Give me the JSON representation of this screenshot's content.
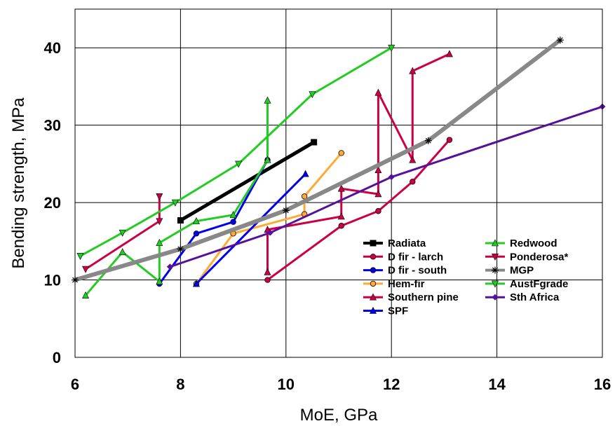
{
  "chart_data": {
    "type": "line",
    "xlabel": "MoE, GPa",
    "ylabel": "Bending strength, MPa",
    "xlim": [
      6,
      16
    ],
    "ylim": [
      0,
      45
    ],
    "x_ticks": [
      "6",
      "8",
      "10",
      "12",
      "14",
      "16"
    ],
    "y_ticks": [
      "0",
      "10",
      "20",
      "30",
      "40"
    ],
    "grid": true,
    "legend_position": "lower-right inside plot, two columns",
    "series": [
      {
        "name": "Radiata",
        "color": "#000000",
        "marker": "square",
        "width": 5,
        "x": [
          8.0,
          10.53
        ],
        "y": [
          17.7,
          27.8
        ]
      },
      {
        "name": "D fir - larch",
        "color": "#cc0044",
        "marker": "circle",
        "width": 3,
        "x": [
          9.65,
          11.05,
          11.75,
          12.4,
          13.1
        ],
        "y": [
          10.0,
          17.0,
          18.9,
          22.7,
          28.1
        ]
      },
      {
        "name": "D fir - south",
        "color": "#0000ee",
        "marker": "circle",
        "width": 3,
        "x": [
          7.6,
          8.3,
          9.0,
          9.65
        ],
        "y": [
          9.5,
          16.0,
          17.5,
          25.5
        ]
      },
      {
        "name": "Hem-fir",
        "color": "#ffaa33",
        "marker": "circle",
        "width": 3,
        "x": [
          8.3,
          9.0,
          10.35,
          10.35,
          11.05
        ],
        "y": [
          9.5,
          16.0,
          18.5,
          20.8,
          26.4
        ]
      },
      {
        "name": "Southern pine",
        "color": "#cc0044",
        "marker": "triangle-up",
        "width": 3,
        "x": [
          9.65,
          9.65,
          11.05,
          11.05,
          11.75,
          11.75,
          11.75,
          12.4,
          12.4,
          13.1
        ],
        "y": [
          11.0,
          16.5,
          18.2,
          21.8,
          21.1,
          24.2,
          34.2,
          25.5,
          37.0,
          39.2
        ]
      },
      {
        "name": "SPF",
        "color": "#0000ee",
        "marker": "triangle-up",
        "width": 3,
        "x": [
          8.3,
          10.37
        ],
        "y": [
          9.5,
          23.7
        ]
      },
      {
        "name": "Redwood",
        "color": "#22cc22",
        "marker": "triangle-up",
        "width": 3,
        "x": [
          6.2,
          6.9,
          7.6,
          7.6,
          8.3,
          9.0,
          9.65,
          9.65
        ],
        "y": [
          8.0,
          13.6,
          9.8,
          14.8,
          17.6,
          18.4,
          25.5,
          33.2
        ]
      },
      {
        "name": "Ponderosa*",
        "color": "#cc0044",
        "marker": "triangle-down",
        "width": 3,
        "x": [
          6.2,
          7.6,
          7.6
        ],
        "y": [
          11.4,
          17.6,
          20.8
        ]
      },
      {
        "name": "MGP",
        "color": "#888888",
        "marker": "star",
        "width": 6,
        "x": [
          6.0,
          8.0,
          10.0,
          12.7,
          15.2
        ],
        "y": [
          10.0,
          14.0,
          19.0,
          28.0,
          41.0
        ]
      },
      {
        "name": "AustFgrade",
        "color": "#22cc22",
        "marker": "triangle-down",
        "width": 3,
        "x": [
          6.1,
          6.9,
          7.9,
          9.1,
          10.5,
          12.0
        ],
        "y": [
          13.1,
          16.1,
          20.0,
          25.0,
          34.0,
          40.0
        ]
      },
      {
        "name": "Sth Africa",
        "color": "#551199",
        "marker": "diamond",
        "width": 3,
        "x": [
          7.8,
          9.7,
          12.0,
          16.0
        ],
        "y": [
          11.7,
          16.1,
          23.3,
          32.4
        ]
      }
    ]
  }
}
